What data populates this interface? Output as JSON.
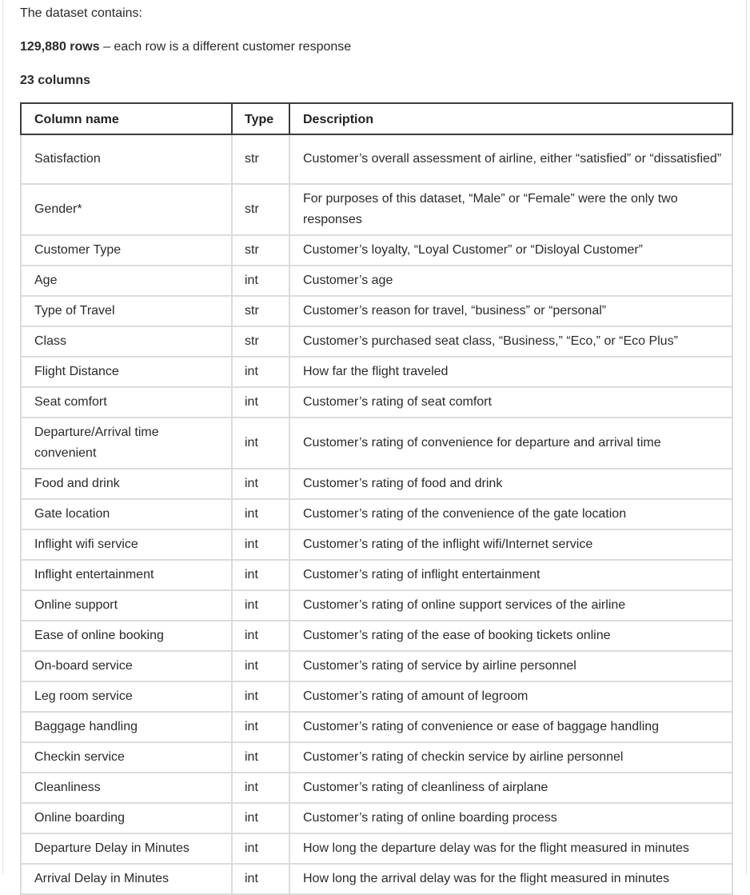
{
  "intro": {
    "text": "The dataset contains:",
    "rows_bold": "129,880 rows",
    "rows_rest": " – each row is a different customer response",
    "columns_bold": "23 columns"
  },
  "table": {
    "headers": {
      "name": "Column name",
      "type": "Type",
      "description": "Description"
    },
    "rows": [
      {
        "name": "Satisfaction",
        "type": "str",
        "description": "Customer’s overall assessment of airline, either “satisfied” or “dissatisfied”"
      },
      {
        "name": "Gender*",
        "type": "str",
        "description": "For purposes of this dataset, “Male” or “Female” were the only two responses"
      },
      {
        "name": "Customer Type",
        "type": "str",
        "description": "Customer’s loyalty, “Loyal Customer” or “Disloyal Customer”"
      },
      {
        "name": "Age",
        "type": "int",
        "description": "Customer’s age"
      },
      {
        "name": "Type of Travel",
        "type": "str",
        "description": "Customer’s reason for travel, “business” or “personal”"
      },
      {
        "name": "Class",
        "type": "str",
        "description": "Customer’s purchased seat class, “Business,” “Eco,” or “Eco Plus”"
      },
      {
        "name": "Flight Distance",
        "type": "int",
        "description": "How far the flight traveled"
      },
      {
        "name": "Seat comfort",
        "type": "int",
        "description": "Customer’s rating of seat comfort"
      },
      {
        "name": "Departure/Arrival time convenient",
        "type": "int",
        "description": "Customer’s rating of convenience for departure and arrival time"
      },
      {
        "name": "Food and drink",
        "type": "int",
        "description": "Customer’s rating of food and drink"
      },
      {
        "name": "Gate location",
        "type": "int",
        "description": "Customer’s rating of the convenience of the gate location"
      },
      {
        "name": "Inflight wifi service",
        "type": "int",
        "description": "Customer’s rating of the inflight wifi/Internet service"
      },
      {
        "name": "Inflight entertainment",
        "type": "int",
        "description": "Customer’s rating of inflight entertainment"
      },
      {
        "name": "Online support",
        "type": "int",
        "description": "Customer’s rating of online support services of the airline"
      },
      {
        "name": "Ease of online booking",
        "type": "int",
        "description": "Customer’s rating of the ease of booking tickets online"
      },
      {
        "name": "On-board service",
        "type": "int",
        "description": "Customer’s rating of service by airline personnel"
      },
      {
        "name": "Leg room service",
        "type": "int",
        "description": "Customer’s rating of amount of legroom"
      },
      {
        "name": "Baggage handling",
        "type": "int",
        "description": "Customer’s rating of convenience or ease of baggage handling"
      },
      {
        "name": "Checkin service",
        "type": "int",
        "description": "Customer’s rating of checkin service by airline personnel"
      },
      {
        "name": "Cleanliness",
        "type": "int",
        "description": "Customer’s rating of cleanliness of airplane"
      },
      {
        "name": "Online boarding",
        "type": "int",
        "description": "Customer’s rating of online boarding process"
      },
      {
        "name": "Departure Delay in Minutes",
        "type": "int",
        "description": "How long the departure delay was for the flight measured in minutes"
      },
      {
        "name": "Arrival Delay in Minutes",
        "type": "int",
        "description": "How long the arrival delay was for the flight measured in minutes"
      }
    ]
  }
}
